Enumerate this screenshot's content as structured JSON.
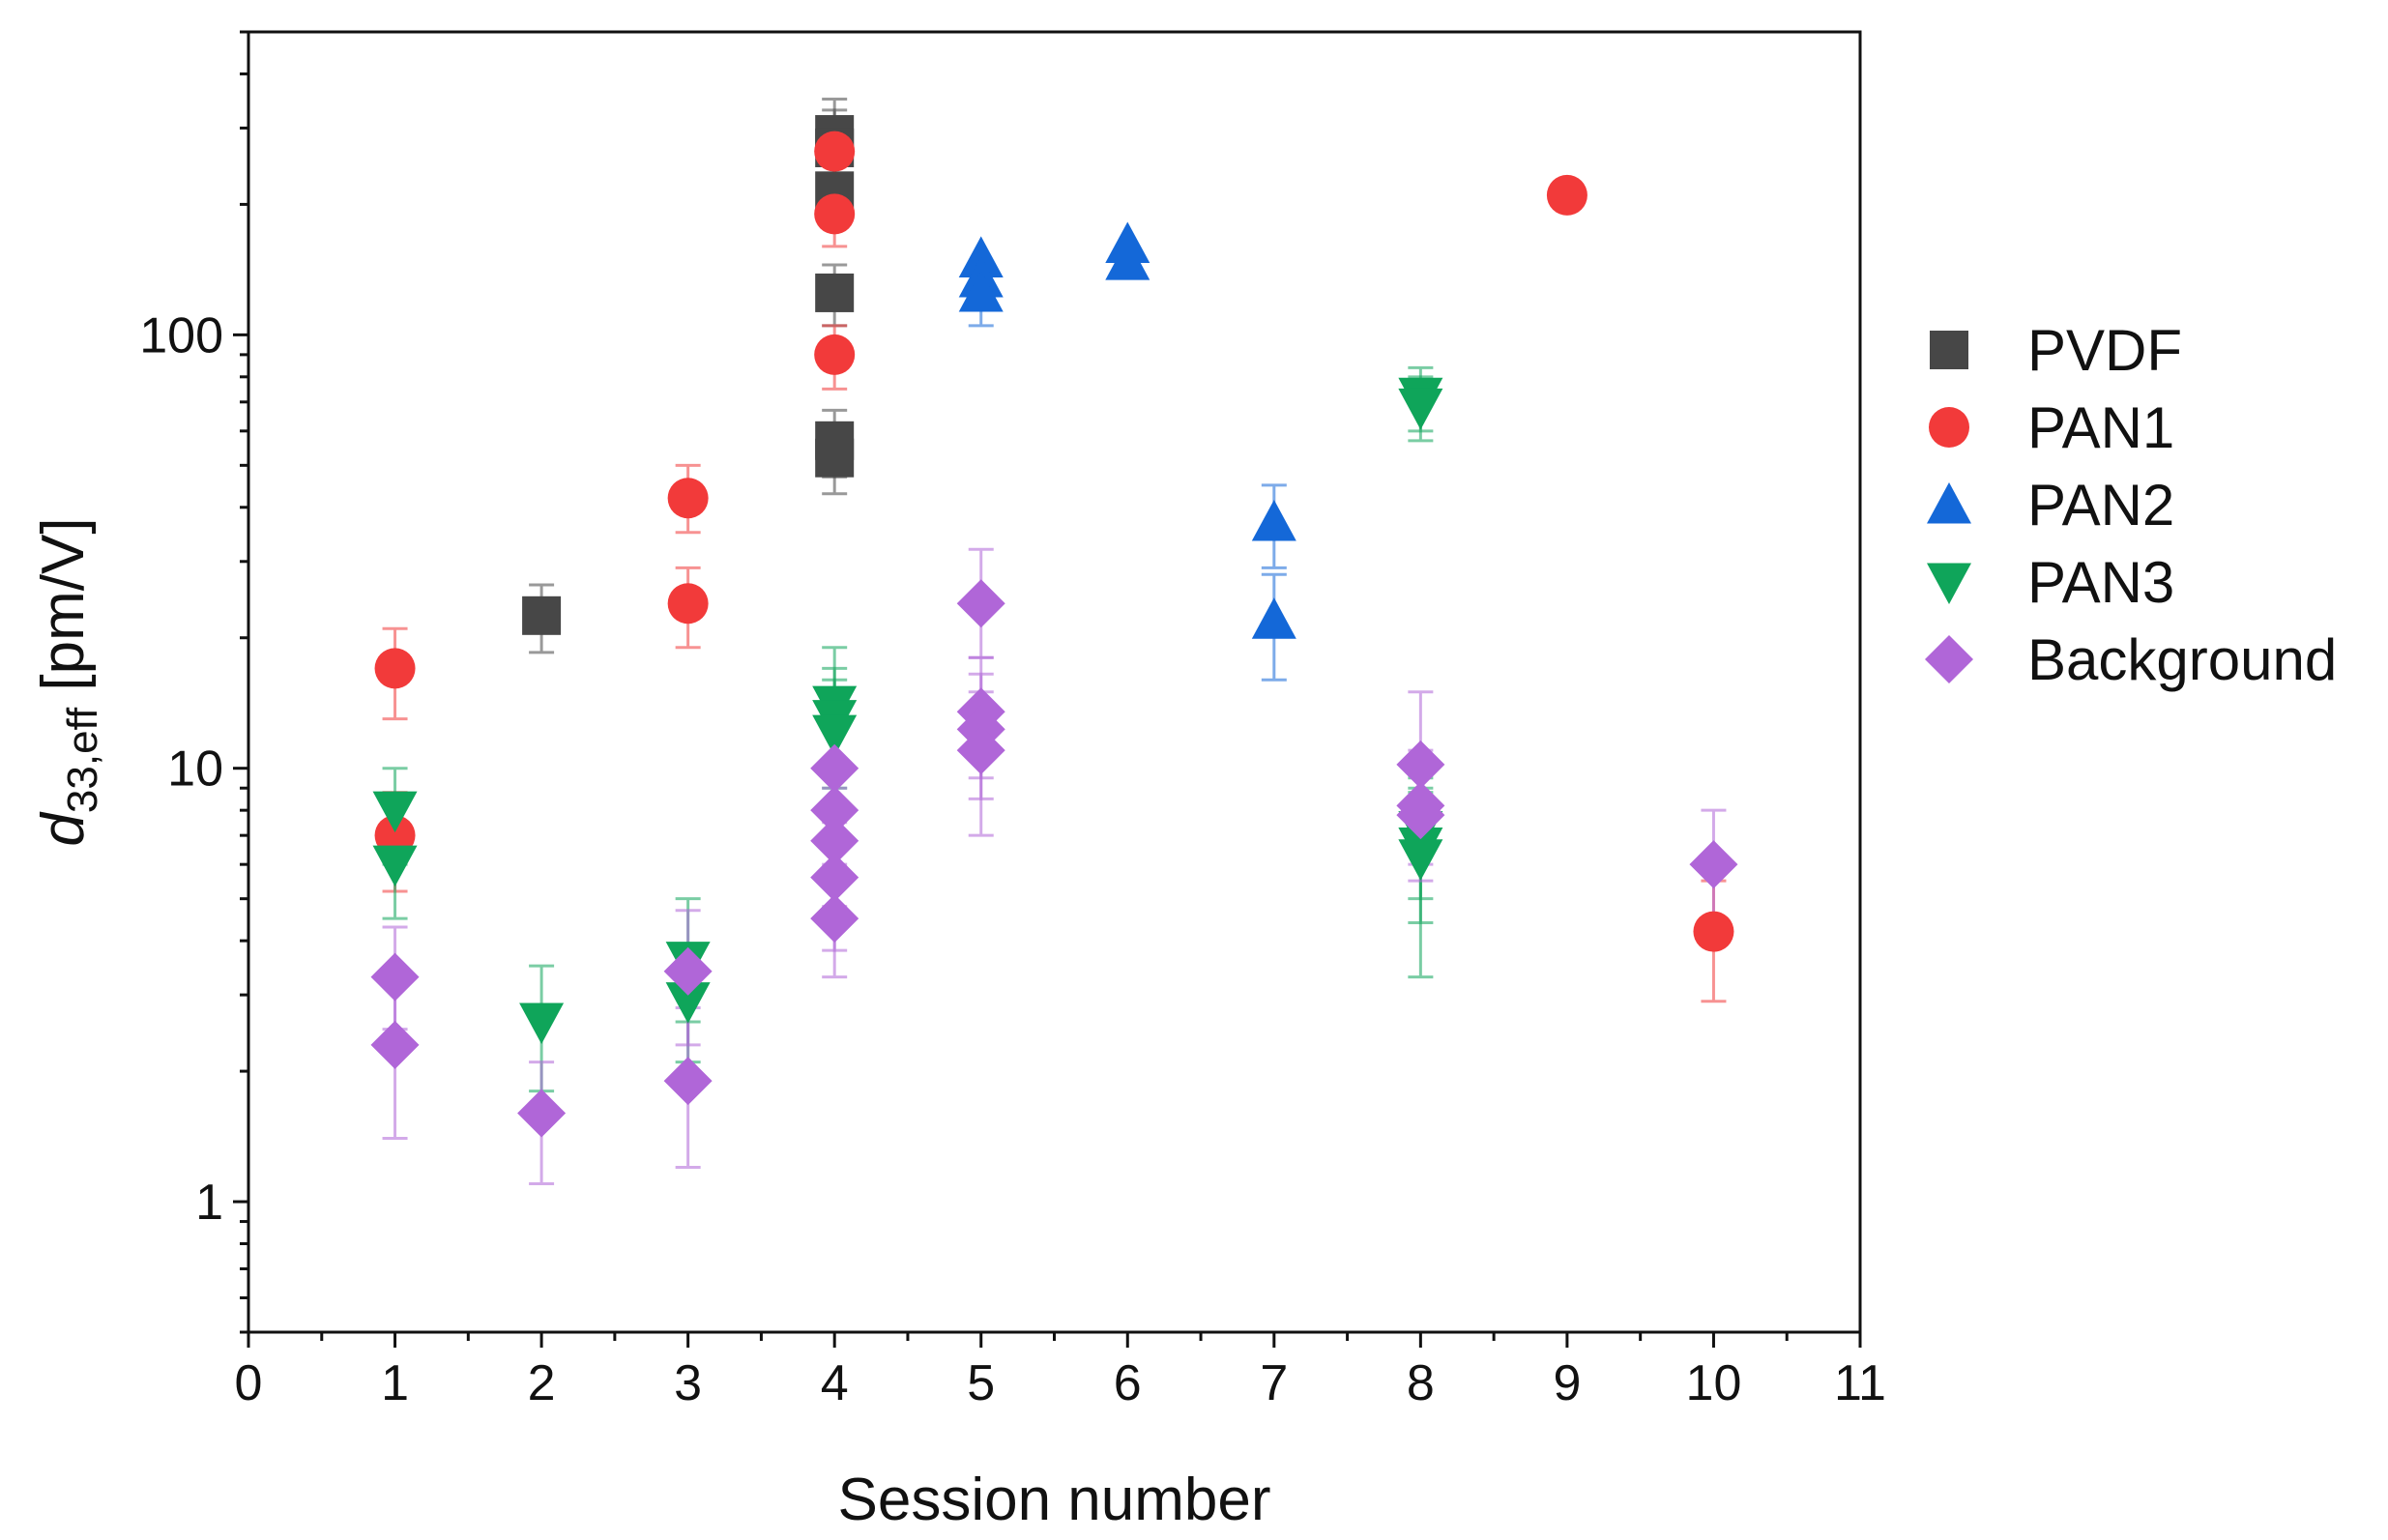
{
  "chart_data": {
    "type": "scatter",
    "title": "",
    "xlabel": "Session number",
    "ylabel": {
      "main": "d",
      "sub": "33,eff",
      "unit": " [pm/V]"
    },
    "xlim": [
      0,
      11
    ],
    "ylim": [
      0.5,
      500
    ],
    "yscale": "log",
    "x_ticks": [
      0,
      1,
      2,
      3,
      4,
      5,
      6,
      7,
      8,
      9,
      10,
      11
    ],
    "x_tick_labels": [
      "0",
      "1",
      "2",
      "3",
      "4",
      "5",
      "6",
      "7",
      "8",
      "9",
      "10",
      "11"
    ],
    "y_ticks": [
      1,
      10,
      100
    ],
    "y_tick_labels": [
      "1",
      "10",
      "100"
    ],
    "legend_position": "right",
    "series": [
      {
        "name": "PVDF",
        "marker": "square",
        "color": "#474747",
        "points": [
          {
            "x": 2,
            "y": 22.5,
            "lo": 18.5,
            "hi": 26.5
          },
          {
            "x": 4,
            "y": 290,
            "lo": 250,
            "hi": 330
          },
          {
            "x": 4,
            "y": 270,
            "lo": 230,
            "hi": 350
          },
          {
            "x": 4,
            "y": 215,
            "lo": 185,
            "hi": 250
          },
          {
            "x": 4,
            "y": 125,
            "lo": 105,
            "hi": 145
          },
          {
            "x": 4,
            "y": 57,
            "lo": 47,
            "hi": 67
          },
          {
            "x": 4,
            "y": 52,
            "lo": 43,
            "hi": 62
          }
        ]
      },
      {
        "name": "PAN1",
        "marker": "circle",
        "color": "#f23a3a",
        "points": [
          {
            "x": 1,
            "y": 17,
            "lo": 13,
            "hi": 21
          },
          {
            "x": 1,
            "y": 7,
            "lo": 5.2,
            "hi": 8.8
          },
          {
            "x": 3,
            "y": 42,
            "lo": 35,
            "hi": 50
          },
          {
            "x": 3,
            "y": 24,
            "lo": 19,
            "hi": 29
          },
          {
            "x": 4,
            "y": 265,
            "lo": 225,
            "hi": 300
          },
          {
            "x": 4,
            "y": 190,
            "lo": 160,
            "hi": 220
          },
          {
            "x": 4,
            "y": 90,
            "lo": 75,
            "hi": 105
          },
          {
            "x": 9,
            "y": 210
          },
          {
            "x": 10,
            "y": 4.2,
            "lo": 2.9,
            "hi": 5.5
          }
        ]
      },
      {
        "name": "PAN2",
        "marker": "triangle-up",
        "color": "#1468d8",
        "points": [
          {
            "x": 5,
            "y": 150
          },
          {
            "x": 5,
            "y": 135
          },
          {
            "x": 5,
            "y": 125,
            "lo": 105,
            "hi": 145
          },
          {
            "x": 6,
            "y": 162
          },
          {
            "x": 6,
            "y": 148
          },
          {
            "x": 7,
            "y": 37,
            "lo": 29,
            "hi": 45
          },
          {
            "x": 7,
            "y": 22,
            "lo": 16,
            "hi": 28
          }
        ]
      },
      {
        "name": "PAN3",
        "marker": "triangle-down",
        "color": "#0fa55a",
        "points": [
          {
            "x": 1,
            "y": 8,
            "lo": 6,
            "hi": 10
          },
          {
            "x": 1,
            "y": 6,
            "lo": 4.5,
            "hi": 7.5
          },
          {
            "x": 2,
            "y": 2.6,
            "lo": 1.8,
            "hi": 3.5
          },
          {
            "x": 3,
            "y": 3.6,
            "lo": 2.6,
            "hi": 5
          },
          {
            "x": 3,
            "y": 2.9,
            "lo": 2.1,
            "hi": 3.9
          },
          {
            "x": 4,
            "y": 14,
            "lo": 10,
            "hi": 19
          },
          {
            "x": 4,
            "y": 13,
            "lo": 9.5,
            "hi": 17
          },
          {
            "x": 4,
            "y": 12,
            "lo": 9,
            "hi": 16
          },
          {
            "x": 8,
            "y": 72,
            "lo": 60,
            "hi": 84
          },
          {
            "x": 8,
            "y": 68,
            "lo": 57,
            "hi": 80
          },
          {
            "x": 8,
            "y": 7.2,
            "lo": 5,
            "hi": 9.5
          },
          {
            "x": 8,
            "y": 6.6,
            "lo": 4.4,
            "hi": 8.8
          },
          {
            "x": 8,
            "y": 6.2,
            "lo": 3.3,
            "hi": 9
          }
        ]
      },
      {
        "name": "Background",
        "marker": "diamond",
        "color": "#b066d8",
        "points": [
          {
            "x": 1,
            "y": 3.3,
            "lo": 2.5,
            "hi": 4.3
          },
          {
            "x": 1,
            "y": 2.3,
            "lo": 1.4,
            "hi": 3.2
          },
          {
            "x": 2,
            "y": 1.6,
            "lo": 1.1,
            "hi": 2.1
          },
          {
            "x": 3,
            "y": 3.4,
            "lo": 2.3,
            "hi": 4.7
          },
          {
            "x": 3,
            "y": 1.9,
            "lo": 1.2,
            "hi": 2.8
          },
          {
            "x": 4,
            "y": 10,
            "lo": 7.5,
            "hi": 13
          },
          {
            "x": 4,
            "y": 8,
            "lo": 5.8,
            "hi": 10.5
          },
          {
            "x": 4,
            "y": 6.8,
            "lo": 4.8,
            "hi": 9
          },
          {
            "x": 4,
            "y": 5.6,
            "lo": 3.8,
            "hi": 7.6
          },
          {
            "x": 4,
            "y": 4.5,
            "lo": 3.3,
            "hi": 6
          },
          {
            "x": 5,
            "y": 24,
            "lo": 18,
            "hi": 32
          },
          {
            "x": 5,
            "y": 13.5,
            "lo": 9.5,
            "hi": 18
          },
          {
            "x": 5,
            "y": 12.3,
            "lo": 8.5,
            "hi": 16.5
          },
          {
            "x": 5,
            "y": 11,
            "lo": 7,
            "hi": 15
          },
          {
            "x": 8,
            "y": 10.2,
            "lo": 7.5,
            "hi": 15
          },
          {
            "x": 8,
            "y": 8.2,
            "lo": 6,
            "hi": 11
          },
          {
            "x": 8,
            "y": 7.8,
            "lo": 5.5,
            "hi": 10.5
          },
          {
            "x": 10,
            "y": 6,
            "lo": 4.2,
            "hi": 8
          }
        ]
      }
    ]
  }
}
